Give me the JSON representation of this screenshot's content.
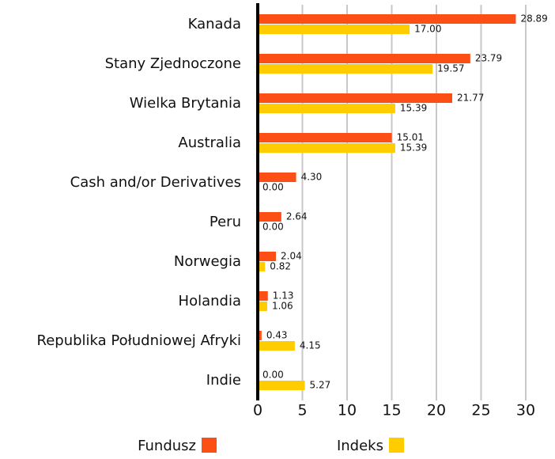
{
  "chart_data": {
    "type": "hbar",
    "categories": [
      "Kanada",
      "Stany Zjednoczone",
      "Wielka Brytania",
      "Australia",
      "Cash and/or Derivatives",
      "Peru",
      "Norwegia",
      "Holandia",
      "Republika Południowej Afryki",
      "Indie"
    ],
    "series": [
      {
        "name": "Fundusz",
        "color": "#fc4f16",
        "values": [
          28.89,
          23.79,
          21.77,
          15.01,
          4.3,
          2.64,
          2.04,
          1.13,
          0.43,
          0.0
        ],
        "value_labels": [
          "28.89",
          "23.79",
          "21.77",
          "15.01",
          "4.30",
          "2.64",
          "2.04",
          "1.13",
          "0.43",
          "0.00"
        ]
      },
      {
        "name": "Indeks",
        "color": "#ffcc00",
        "values": [
          17.0,
          19.57,
          15.39,
          15.39,
          0.0,
          0.0,
          0.82,
          1.06,
          4.15,
          5.27
        ],
        "value_labels": [
          "17.00",
          "19.57",
          "15.39",
          "15.39",
          "0.00",
          "0.00",
          "0.82",
          "1.06",
          "4.15",
          "5.27"
        ]
      }
    ],
    "xlim": [
      0,
      30
    ],
    "xticks": [
      0,
      5,
      10,
      15,
      20,
      25,
      30
    ],
    "grid": true
  }
}
